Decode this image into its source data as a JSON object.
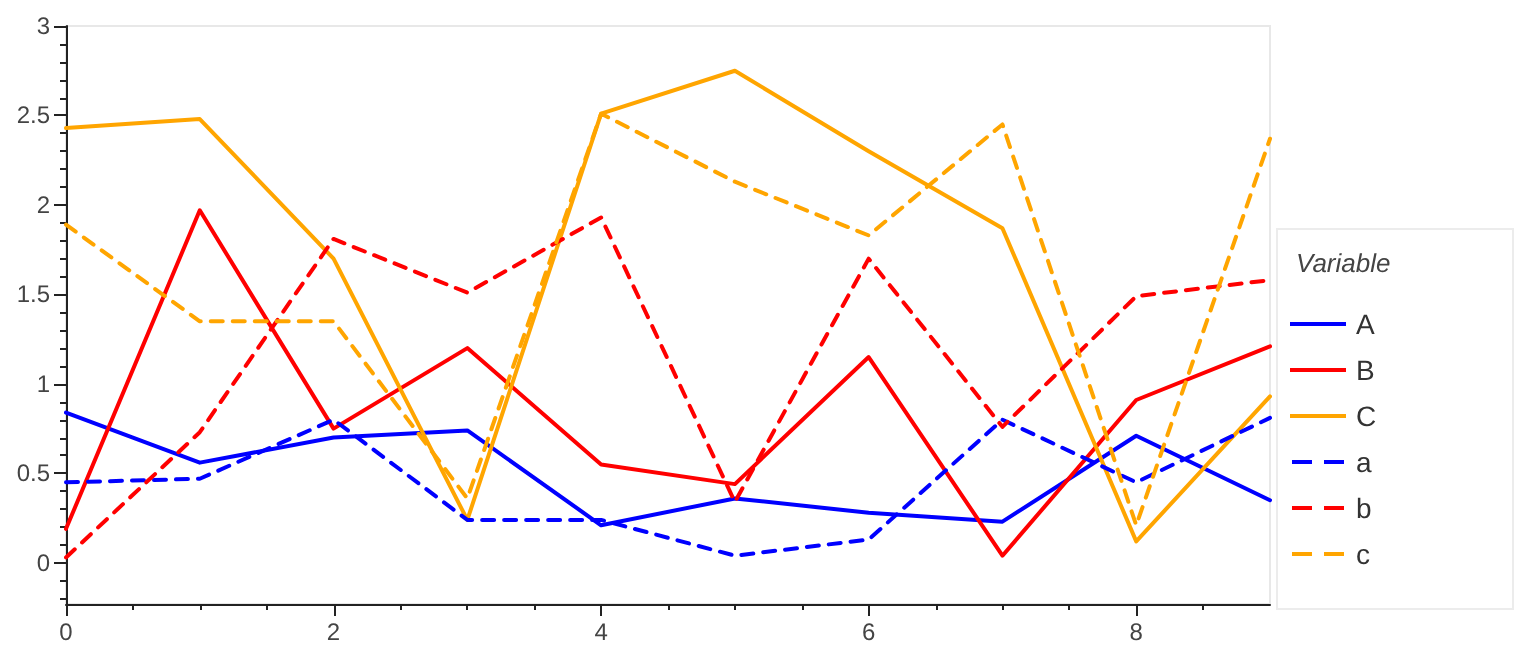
{
  "chart_data": {
    "type": "line",
    "legend_title": "Variable",
    "legend": "right",
    "grid": false,
    "marker": "none",
    "x": [
      0,
      1,
      2,
      3,
      4,
      5,
      6,
      7,
      8,
      9
    ],
    "xlim": [
      0,
      9
    ],
    "xticks": [
      0,
      2,
      4,
      6,
      8
    ],
    "ylim": [
      -0.23,
      3
    ],
    "yticks": [
      0,
      0.5,
      1,
      1.5,
      2,
      2.5,
      3
    ],
    "series": [
      {
        "name": "A",
        "color": "#0000ff",
        "line_style": "solid",
        "values": [
          0.84,
          0.56,
          0.7,
          0.74,
          0.21,
          0.36,
          0.28,
          0.23,
          0.71,
          0.35
        ]
      },
      {
        "name": "B",
        "color": "#ff0000",
        "line_style": "solid",
        "values": [
          0.19,
          1.97,
          0.75,
          1.2,
          0.55,
          0.44,
          1.15,
          0.04,
          0.91,
          1.21
        ]
      },
      {
        "name": "C",
        "color": "#ffa500",
        "line_style": "solid",
        "values": [
          2.43,
          2.48,
          1.7,
          0.24,
          2.51,
          2.75,
          2.3,
          1.87,
          0.12,
          0.93
        ]
      },
      {
        "name": "a",
        "color": "#0000ff",
        "line_style": "dashed",
        "values": [
          0.45,
          0.47,
          0.8,
          0.24,
          0.24,
          0.04,
          0.13,
          0.8,
          0.45,
          0.81
        ]
      },
      {
        "name": "b",
        "color": "#ff0000",
        "line_style": "dashed",
        "values": [
          0.03,
          0.73,
          1.81,
          1.51,
          1.93,
          0.34,
          1.7,
          0.76,
          1.49,
          1.58
        ]
      },
      {
        "name": "c",
        "color": "#ffa500",
        "line_style": "dashed",
        "values": [
          1.89,
          1.35,
          1.35,
          0.36,
          2.51,
          2.13,
          1.83,
          2.45,
          0.21,
          2.37
        ]
      }
    ]
  }
}
